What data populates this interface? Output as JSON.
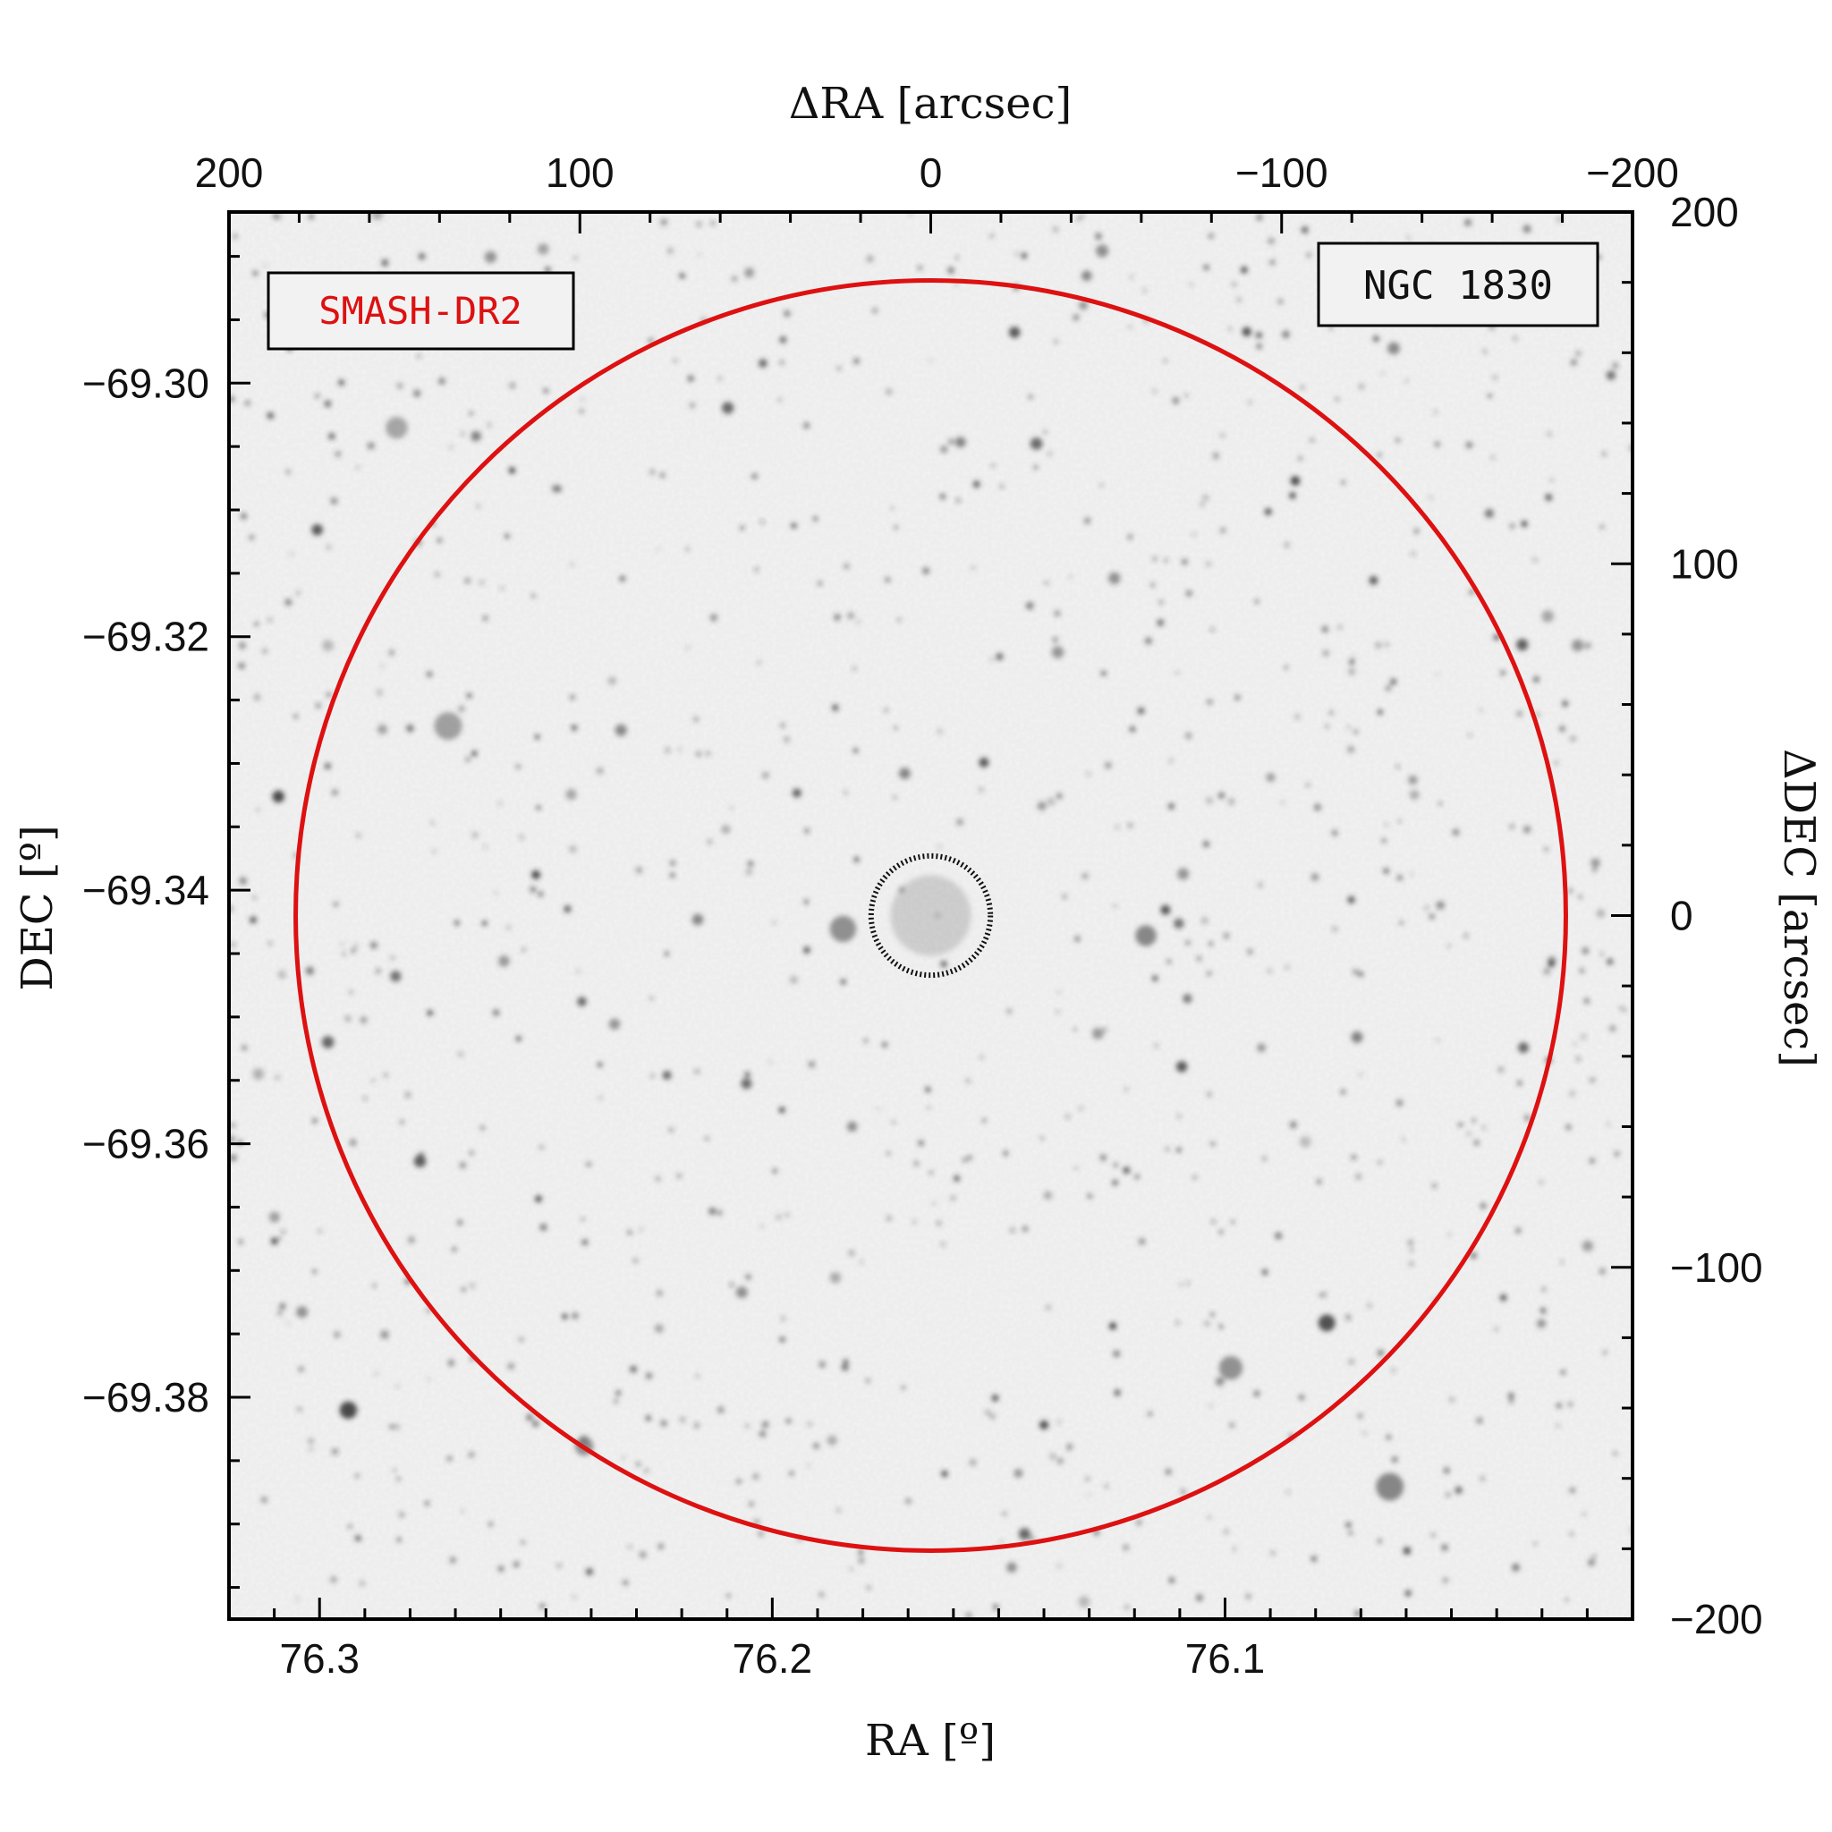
{
  "chart_data": {
    "type": "image",
    "image_description_tag": "grayscale-sky-field",
    "object_label": "NGC 1830",
    "survey_label": "SMASH-DR2",
    "colors": {
      "outer_circle": "#dd1111",
      "inner_circle": "#111111",
      "survey_label": "#dd1111",
      "object_label": "#111111",
      "frame": "#000000",
      "background_sky": "#eeeeee"
    },
    "bottom_axis": {
      "label": "RA [º]",
      "ticks": [
        {
          "value": 76.3,
          "label": "76.3"
        },
        {
          "value": 76.2,
          "label": "76.2"
        },
        {
          "value": 76.1,
          "label": "76.1"
        }
      ],
      "range": [
        76.32,
        76.01
      ]
    },
    "left_axis": {
      "label": "DEC [º]",
      "ticks": [
        {
          "value": -69.3,
          "label": "−69.30"
        },
        {
          "value": -69.32,
          "label": "−69.32"
        },
        {
          "value": -69.34,
          "label": "−69.34"
        },
        {
          "value": -69.36,
          "label": "−69.36"
        },
        {
          "value": -69.38,
          "label": "−69.38"
        }
      ],
      "range": [
        -69.2865,
        -69.3975
      ]
    },
    "top_axis": {
      "label": "ΔRA [arcsec]",
      "ticks": [
        {
          "value": 200,
          "label": "200"
        },
        {
          "value": 100,
          "label": "100"
        },
        {
          "value": 0,
          "label": "0"
        },
        {
          "value": -100,
          "label": "−100"
        },
        {
          "value": -200,
          "label": "−200"
        }
      ],
      "range": [
        200,
        -200
      ]
    },
    "right_axis": {
      "label": "ΔDEC [arcsec]",
      "ticks": [
        {
          "value": 200,
          "label": "200"
        },
        {
          "value": 100,
          "label": "100"
        },
        {
          "value": 0,
          "label": "0"
        },
        {
          "value": -100,
          "label": "−100"
        },
        {
          "value": -200,
          "label": "−200"
        }
      ],
      "range": [
        200,
        -200
      ]
    },
    "circles": [
      {
        "name": "outer",
        "center_arcsec": [
          0,
          0
        ],
        "radius_arcsec": 181
      },
      {
        "name": "inner",
        "center_arcsec": [
          0,
          0
        ],
        "radius_arcsec": 17
      }
    ]
  }
}
